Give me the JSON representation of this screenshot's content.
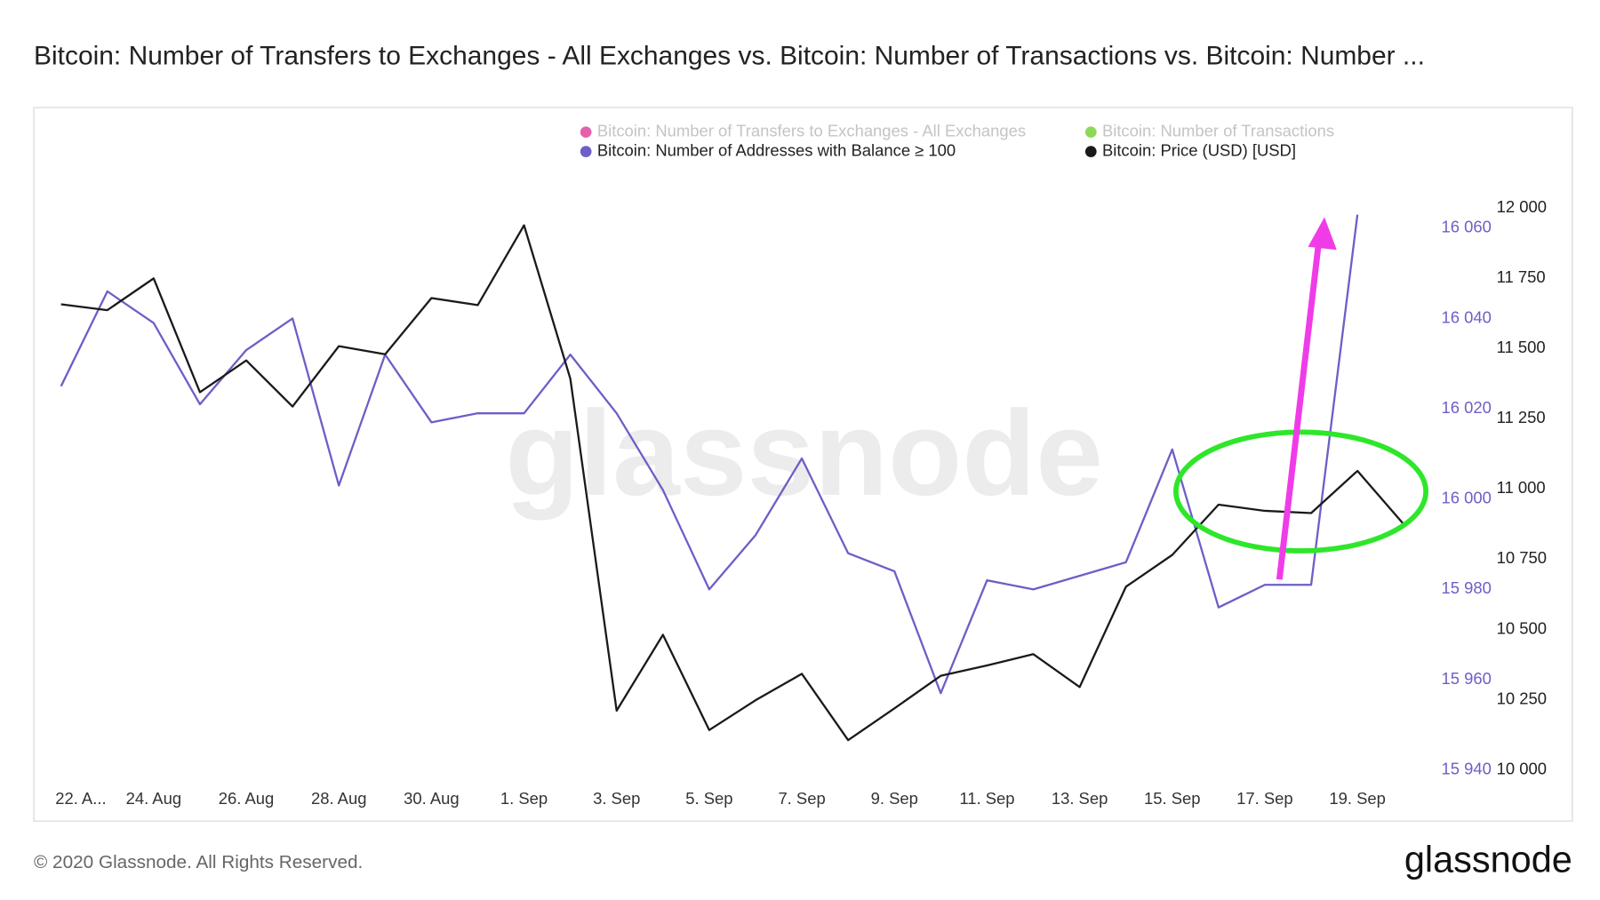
{
  "chart_data": {
    "type": "line",
    "title": "Bitcoin: Number of Transfers to Exchanges - All Exchanges vs. Bitcoin: Number of Transactions vs. Bitcoin: Number ...",
    "watermark": "glassnode",
    "footer": "© 2020 Glassnode. All Rights Reserved.",
    "logo": "glassnode",
    "categories": [
      "22. A...",
      null,
      "24. Aug",
      null,
      "26. Aug",
      null,
      "28. Aug",
      null,
      "30. Aug",
      null,
      "1. Sep",
      null,
      "3. Sep",
      null,
      "5. Sep",
      null,
      "7. Sep",
      null,
      "9. Sep",
      null,
      "11. Sep",
      null,
      "13. Sep",
      null,
      "15. Sep",
      null,
      "17. Sep",
      null,
      "19. Sep",
      null
    ],
    "series": [
      {
        "name": "Bitcoin: Number of Transfers to Exchanges - All Exchanges",
        "color": "#e0449c",
        "hidden": true
      },
      {
        "name": "Bitcoin: Number of Transactions",
        "color": "#7ad13a",
        "hidden": true
      },
      {
        "name": "Bitcoin: Number of Addresses with Balance ≥ 100",
        "color": "#6c5fc7",
        "axis": "y2",
        "values": [
          16025,
          16046,
          16039,
          16021,
          16033,
          16040,
          16003,
          16032,
          16017,
          16019,
          16019,
          16032,
          16019,
          16002,
          15980,
          15992,
          16009,
          15988,
          15984,
          15957,
          15982,
          15980,
          15983,
          15986,
          16011,
          15976,
          15981,
          15981,
          16063,
          null
        ]
      },
      {
        "name": "Bitcoin: Price (USD) [USD]",
        "color": "#1a1a1a",
        "values": [
          11657,
          11636,
          11749,
          11344,
          11457,
          11293,
          11508,
          11479,
          11679,
          11654,
          11938,
          11392,
          10211,
          10481,
          10142,
          10248,
          10342,
          10106,
          10219,
          10335,
          10372,
          10412,
          10295,
          10652,
          10765,
          10944,
          10922,
          10914,
          11064,
          10874
        ]
      }
    ],
    "ylim": [
      10000,
      12000
    ],
    "yticks": [
      {
        "value": 10000,
        "label": "10 000"
      },
      {
        "value": 10250,
        "label": "10 250"
      },
      {
        "value": 10500,
        "label": "10 500"
      },
      {
        "value": 10750,
        "label": "10 750"
      },
      {
        "value": 11000,
        "label": "11 000"
      },
      {
        "value": 11250,
        "label": "11 250"
      },
      {
        "value": 11500,
        "label": "11 500"
      },
      {
        "value": 11750,
        "label": "11 750"
      },
      {
        "value": 12000,
        "label": "12 000"
      }
    ],
    "y2lim": [
      15940,
      16064.5
    ],
    "y2ticks": [
      {
        "value": 15940,
        "label": "15 940"
      },
      {
        "value": 15960,
        "label": "15 960"
      },
      {
        "value": 15980,
        "label": "15 980"
      },
      {
        "value": 16000,
        "label": "16 000"
      },
      {
        "value": 16020,
        "label": "16 020"
      },
      {
        "value": 16040,
        "label": "16 040"
      },
      {
        "value": 16060,
        "label": "16 060"
      }
    ],
    "grid": false
  }
}
